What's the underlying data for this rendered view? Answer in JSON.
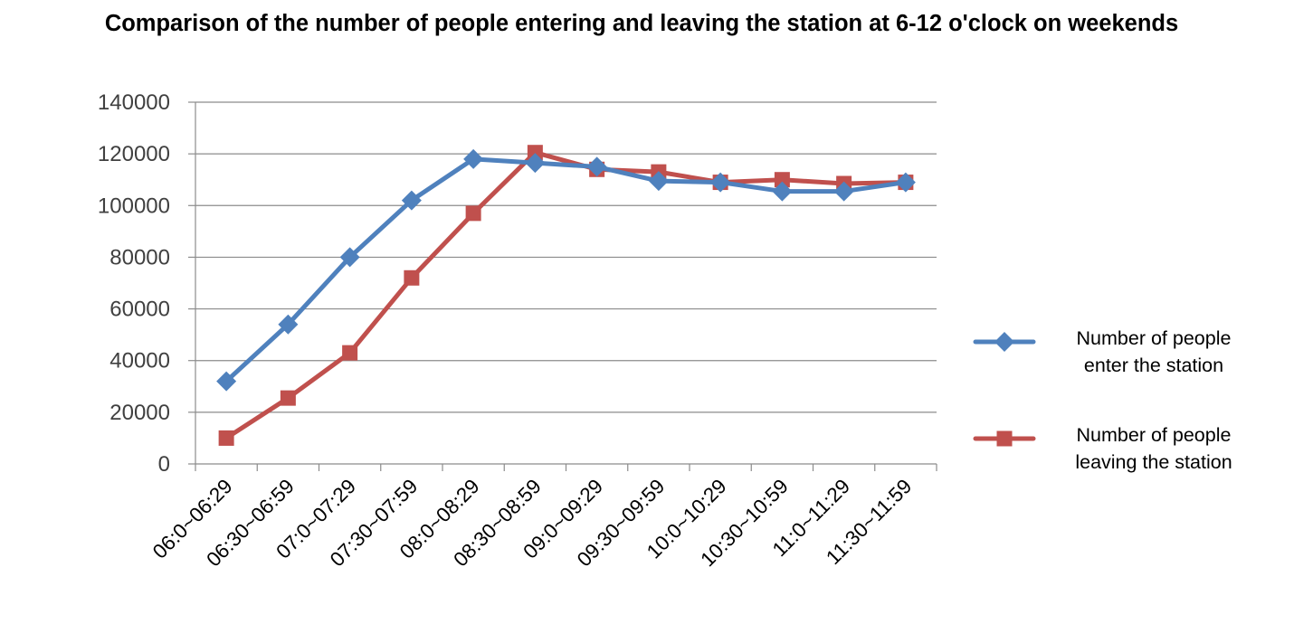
{
  "chart_data": {
    "type": "line",
    "title": "Comparison of the number of people entering and leaving the station at 6-12 o'clock on weekends",
    "xlabel": "",
    "ylabel": "",
    "categories": [
      "06:0~06:29",
      "06:30~06:59",
      "07:0~07:29",
      "07:30~07:59",
      "08:0~08:29",
      "08:30~08:59",
      "09:0~09:29",
      "09:30~09:59",
      "10:0~10:29",
      "10:30~10:59",
      "11:0~11:29",
      "11:30~11:59"
    ],
    "ylim": [
      0,
      140000
    ],
    "yticks": [
      "0",
      "20000",
      "40000",
      "60000",
      "80000",
      "100000",
      "120000",
      "140000"
    ],
    "grid": "horizontal",
    "legend_position": "right",
    "series": [
      {
        "name_lines": [
          "Number of people",
          "enter the station"
        ],
        "marker": "diamond",
        "color": "#4F81BD",
        "values": [
          32000,
          54000,
          80000,
          102000,
          118000,
          116500,
          115000,
          109500,
          109000,
          105500,
          105500,
          109000
        ]
      },
      {
        "name_lines": [
          "Number of people",
          "leaving the station"
        ],
        "marker": "square",
        "color": "#C0504D",
        "values": [
          10000,
          25500,
          43000,
          72000,
          97000,
          120500,
          114000,
          113000,
          109000,
          110000,
          108500,
          109000
        ]
      }
    ]
  }
}
